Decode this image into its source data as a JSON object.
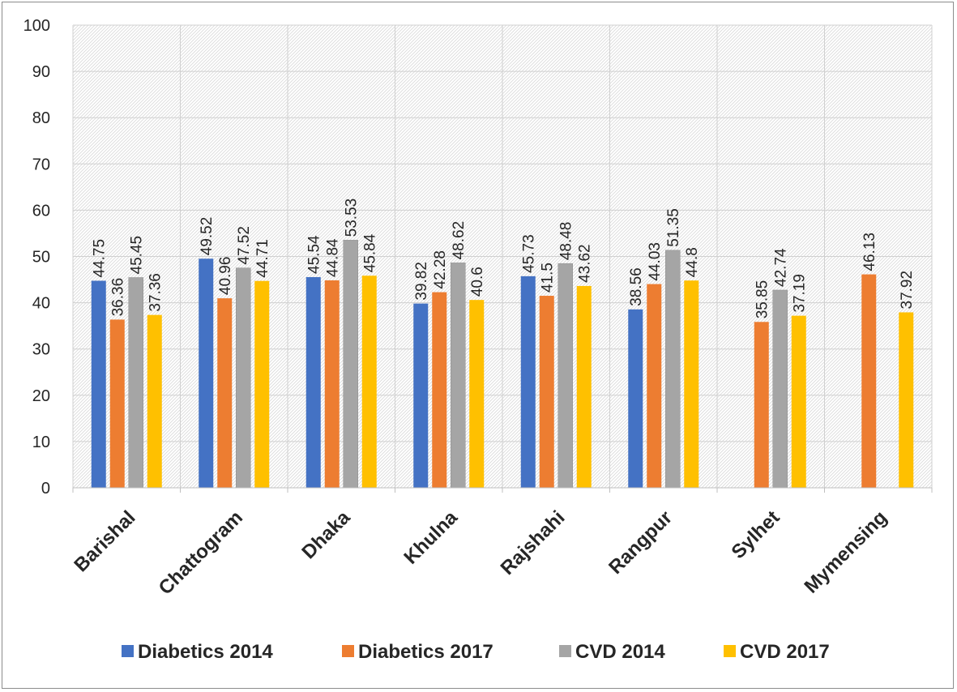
{
  "chart_data": {
    "type": "bar",
    "title": "",
    "xlabel": "",
    "ylabel": "",
    "ylim": [
      0,
      100
    ],
    "yticks": [
      0,
      10,
      20,
      30,
      40,
      50,
      60,
      70,
      80,
      90,
      100
    ],
    "grid": true,
    "legend_position": "bottom",
    "categories": [
      "Barishal",
      "Chattogram",
      "Dhaka",
      "Khulna",
      "Rajshahi",
      "Rangpur",
      "Sylhet",
      "Mymensing"
    ],
    "series": [
      {
        "name": "Diabetics 2014",
        "color": "#4472c4",
        "values": [
          44.75,
          49.52,
          45.54,
          39.82,
          45.73,
          38.56,
          null,
          null
        ]
      },
      {
        "name": "Diabetics 2017",
        "color": "#ed7d31",
        "values": [
          36.36,
          40.96,
          44.84,
          42.28,
          41.5,
          44.03,
          35.85,
          46.13
        ]
      },
      {
        "name": "CVD 2014",
        "color": "#a5a5a5",
        "values": [
          45.45,
          47.52,
          53.53,
          48.62,
          48.48,
          51.35,
          42.74,
          null
        ]
      },
      {
        "name": "CVD 2017",
        "color": "#ffc000",
        "values": [
          37.36,
          44.71,
          45.84,
          40.6,
          43.62,
          44.8,
          37.19,
          37.92
        ]
      }
    ]
  }
}
